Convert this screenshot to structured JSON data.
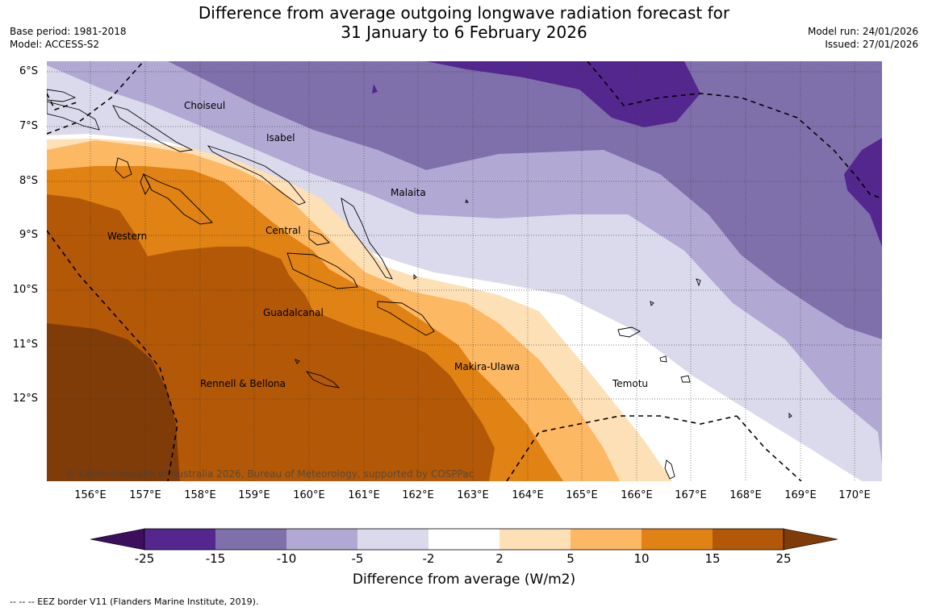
{
  "title": {
    "line1": "Difference from average outgoing longwave radiation forecast for",
    "line2": "31 January to 6 February 2026"
  },
  "meta_left": {
    "base_period": "Base period: 1981-2018",
    "model": "Model: ACCESS-S2"
  },
  "meta_right": {
    "model_run": "Model run: 24/01/2026",
    "issued": "Issued: 27/01/2026"
  },
  "map": {
    "latitude_labels": [
      "6°S",
      "7°S",
      "8°S",
      "9°S",
      "10°S",
      "11°S",
      "12°S"
    ],
    "longitude_labels": [
      "156°E",
      "157°E",
      "158°E",
      "159°E",
      "160°E",
      "161°E",
      "162°E",
      "163°E",
      "164°E",
      "165°E",
      "166°E",
      "167°E",
      "168°E",
      "169°E",
      "170°E"
    ],
    "regions": [
      "Choiseul",
      "Isabel",
      "Malaita",
      "Western",
      "Central",
      "Guadalcanal",
      "Rennell & Bellona",
      "Makira-Ulawa",
      "Temotu"
    ],
    "copyright": "© Commonwealth of Australia 2026, Bureau of Meteorology, supported by COSPPac"
  },
  "legend": {
    "ticks": [
      "-25",
      "-15",
      "-10",
      "-5",
      "-2",
      "2",
      "5",
      "10",
      "15",
      "25"
    ],
    "colors": [
      "#3b0f5e",
      "#54278f",
      "#7f70ac",
      "#b1a9d3",
      "#dadaec",
      "#ffffff",
      "#fee0b6",
      "#fdb863",
      "#e08214",
      "#b35806",
      "#7f3b08"
    ],
    "title": "Difference from average (W/m2)"
  },
  "footnote": "-- -- -- EEZ border V11 (Flanders Marine Institute, 2019)."
}
